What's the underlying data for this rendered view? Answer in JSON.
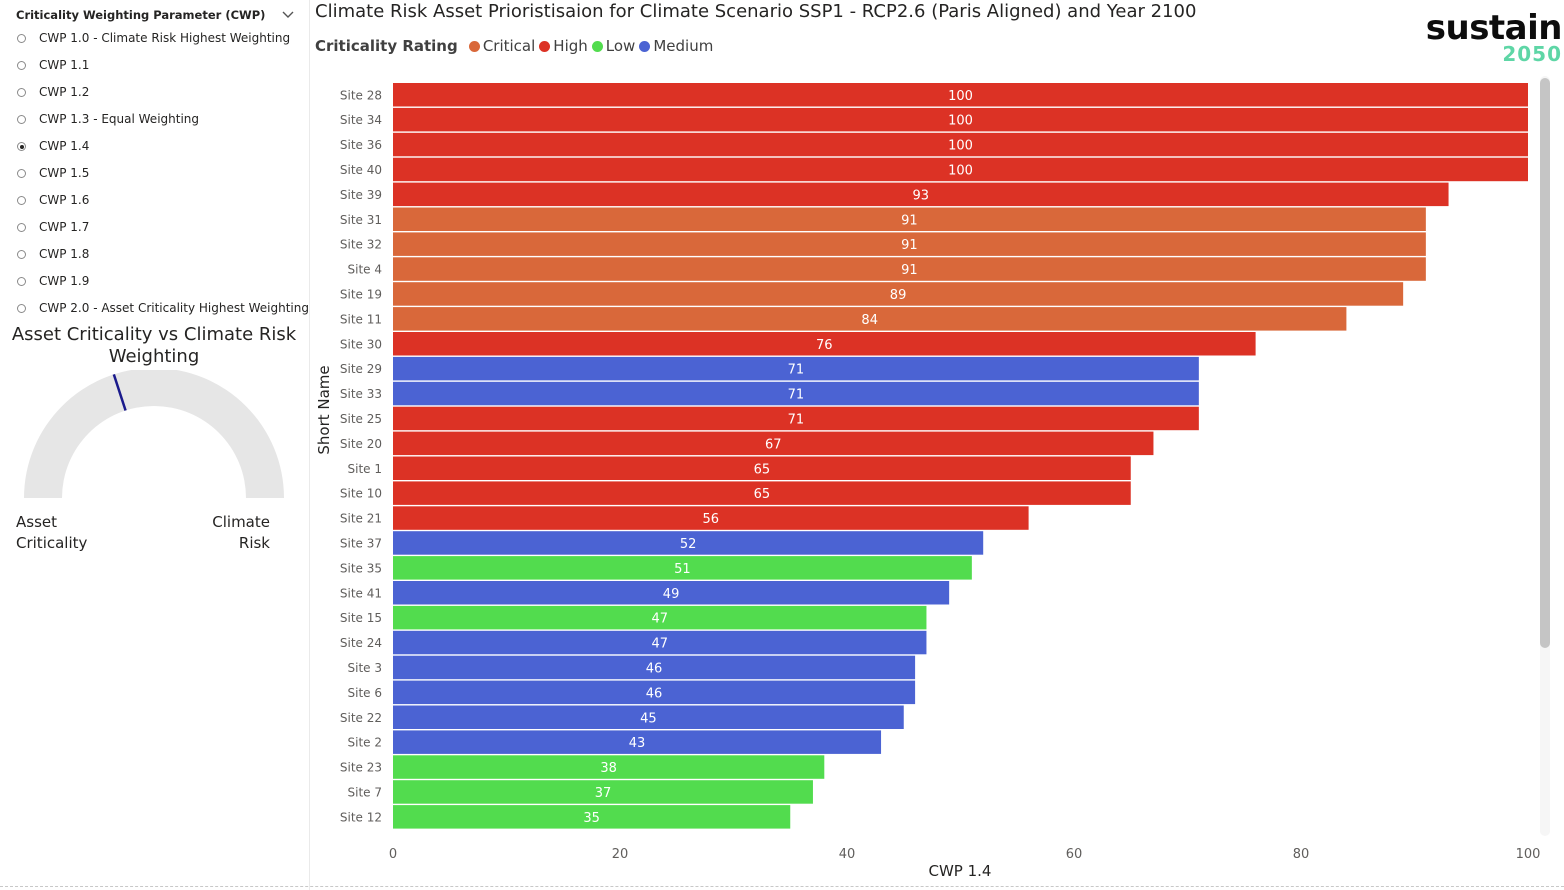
{
  "slicer": {
    "title": "Criticality Weighting Parameter (CWP)",
    "options": [
      {
        "label": "CWP 1.0 - Climate Risk Highest Weighting",
        "selected": false
      },
      {
        "label": "CWP 1.1",
        "selected": false
      },
      {
        "label": "CWP 1.2",
        "selected": false
      },
      {
        "label": "CWP 1.3 - Equal Weighting",
        "selected": false
      },
      {
        "label": "CWP 1.4",
        "selected": true
      },
      {
        "label": "CWP 1.5",
        "selected": false
      },
      {
        "label": "CWP 1.6",
        "selected": false
      },
      {
        "label": "CWP 1.7",
        "selected": false
      },
      {
        "label": "CWP 1.8",
        "selected": false
      },
      {
        "label": "CWP 1.9",
        "selected": false
      },
      {
        "label": "CWP 2.0 - Asset Criticality Highest Weighting",
        "selected": false
      }
    ]
  },
  "gauge": {
    "title": "Asset Criticality vs Climate Risk Weighting",
    "left_label": "Asset\nCriticality",
    "right_label": "Climate\nRisk",
    "needle_fraction": 0.4,
    "track_color": "#e6e6e6",
    "needle_color": "#1a1a8c"
  },
  "logo": {
    "word": "sustain",
    "year": "2050"
  },
  "chart_data": {
    "type": "bar",
    "orientation": "horizontal",
    "title": "Climate Risk Asset Prioristisaion for Climate Scenario SSP1 - RCP2.6 (Paris Aligned) and Year 2100",
    "legend_title": "Criticality Rating",
    "legend": [
      {
        "name": "Critical",
        "color": "#d9683a"
      },
      {
        "name": "High",
        "color": "#dc3225"
      },
      {
        "name": "Low",
        "color": "#52dc4e"
      },
      {
        "name": "Medium",
        "color": "#4b63d3"
      }
    ],
    "xlabel": "CWP 1.4",
    "ylabel": "Short Name",
    "xlim": [
      0,
      100
    ],
    "xticks": [
      0,
      20,
      40,
      60,
      80,
      100
    ],
    "categories": [
      "Site 28",
      "Site 34",
      "Site 36",
      "Site 40",
      "Site 39",
      "Site 31",
      "Site 32",
      "Site 4",
      "Site 19",
      "Site 11",
      "Site 30",
      "Site 29",
      "Site 33",
      "Site 25",
      "Site 20",
      "Site 1",
      "Site 10",
      "Site 21",
      "Site 37",
      "Site 35",
      "Site 41",
      "Site 15",
      "Site 24",
      "Site 3",
      "Site 6",
      "Site 22",
      "Site 2",
      "Site 23",
      "Site 7",
      "Site 12"
    ],
    "values": [
      100,
      100,
      100,
      100,
      93,
      91,
      91,
      91,
      89,
      84,
      76,
      71,
      71,
      71,
      67,
      65,
      65,
      56,
      52,
      51,
      49,
      47,
      47,
      46,
      46,
      45,
      43,
      38,
      37,
      35
    ],
    "ratings": [
      "High",
      "High",
      "High",
      "High",
      "High",
      "Critical",
      "Critical",
      "Critical",
      "Critical",
      "Critical",
      "High",
      "Medium",
      "Medium",
      "High",
      "High",
      "High",
      "High",
      "High",
      "Medium",
      "Low",
      "Medium",
      "Low",
      "Medium",
      "Medium",
      "Medium",
      "Medium",
      "Medium",
      "Low",
      "Low",
      "Low"
    ]
  }
}
